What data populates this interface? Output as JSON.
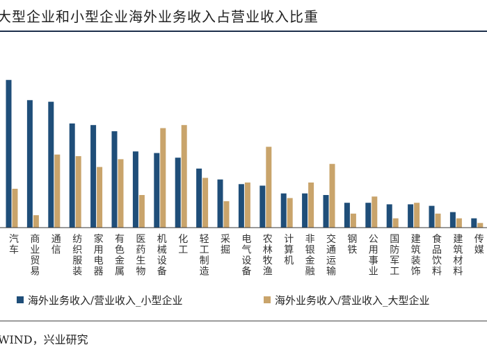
{
  "chart_data": {
    "type": "bar",
    "title": "大型企业和小型企业海外业务收入占营业收入比重",
    "categories": [
      "汽车",
      "商业贸易",
      "通信",
      "纺织服装",
      "家用电器",
      "有色金属",
      "医药生物",
      "机械设备",
      "化工",
      "轻工制造",
      "采掘",
      "电气设备",
      "农林牧渔",
      "计算机",
      "非银金融",
      "交通运输",
      "钢铁",
      "公用事业",
      "国防军工",
      "建筑装饰",
      "食品饮料",
      "建筑材料",
      "传媒"
    ],
    "series": [
      {
        "name": "海外业务收入/营业收入_小型企业",
        "color": "#1f4e79",
        "values": [
          95,
          82,
          81,
          67,
          66,
          62,
          49,
          48,
          45,
          38,
          31,
          28,
          27,
          22,
          22,
          21,
          16,
          16,
          15,
          15,
          14,
          10,
          6
        ]
      },
      {
        "name": "海外业务收入/营业收入_大型企业",
        "color": "#c9a46b",
        "values": [
          25,
          8,
          47,
          46,
          39,
          44,
          21,
          64,
          66,
          32,
          17,
          29,
          52,
          19,
          29,
          41,
          9,
          20,
          6,
          16,
          9,
          6,
          3
        ]
      }
    ],
    "ylim": [
      0,
      100
    ],
    "xlabel": "",
    "ylabel": ""
  },
  "source": "WIND，兴业研究"
}
